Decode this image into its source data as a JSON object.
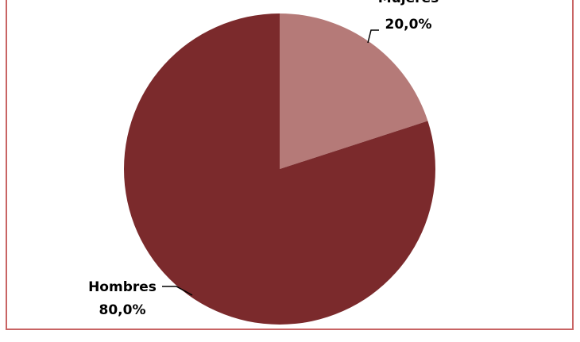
{
  "colors": {
    "border": "#C86464",
    "leader_line": "#000000",
    "label_text": "#000000"
  },
  "chart_data": {
    "type": "pie",
    "title": "",
    "categories": [
      "Mujeres",
      "Hombres"
    ],
    "values": [
      20.0,
      80.0
    ],
    "display_labels": [
      "20,0%",
      "80,0%"
    ],
    "colors": [
      "#B57A78",
      "#7B2A2C"
    ],
    "start_angle_deg": 0,
    "direction": "clockwise",
    "legend": "none",
    "data_labels": "outside-with-leader-lines"
  }
}
